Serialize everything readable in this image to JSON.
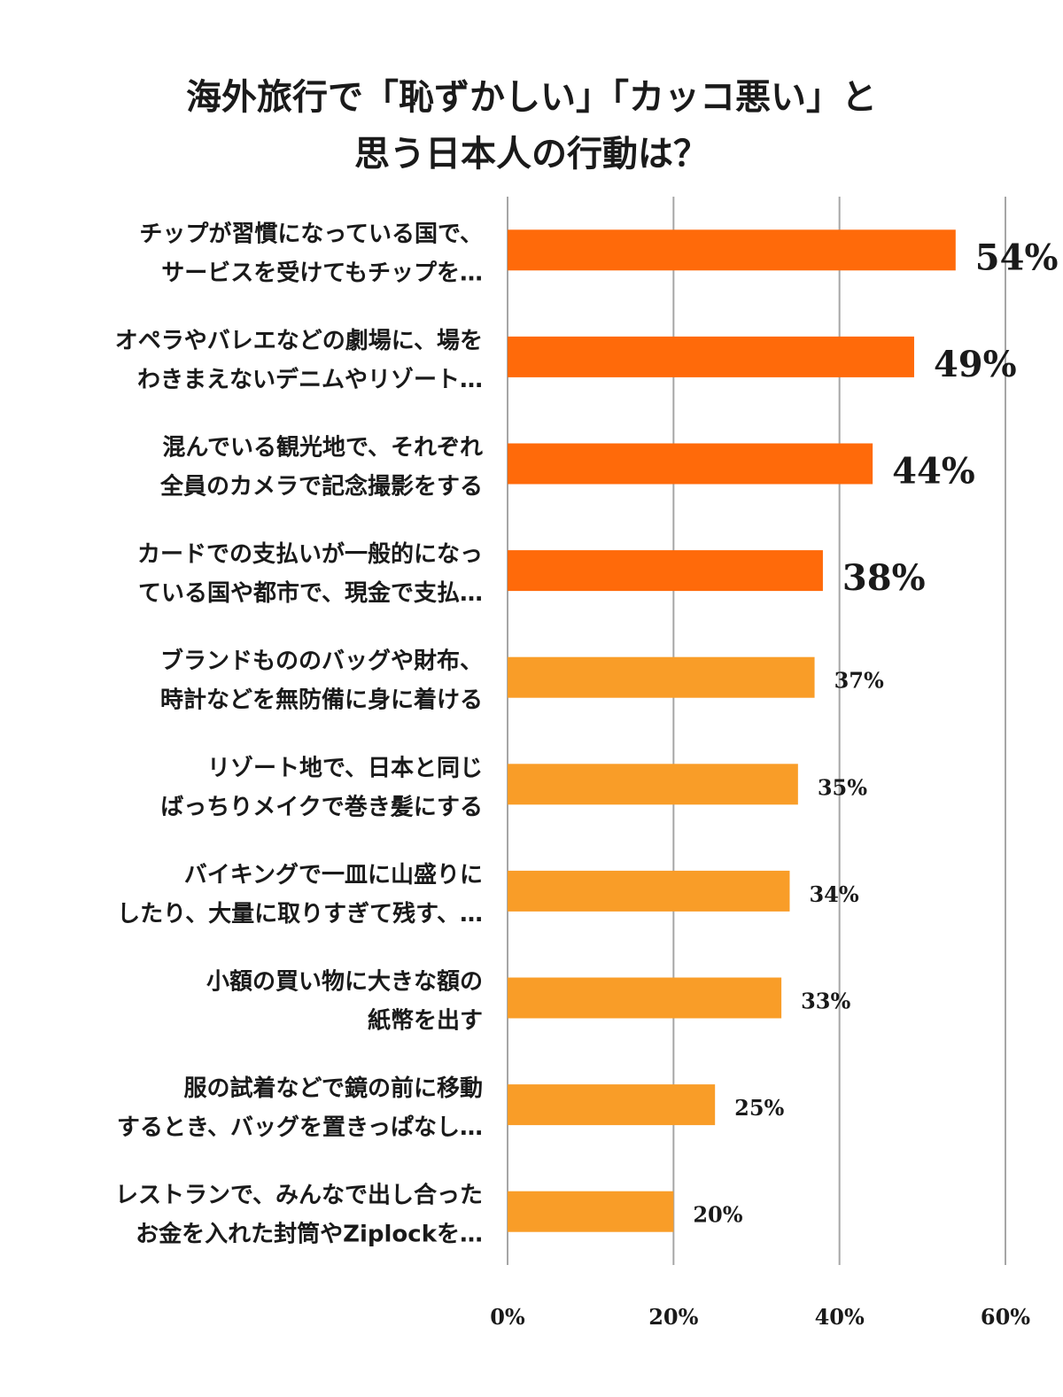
{
  "chart_data": {
    "type": "bar",
    "orientation": "horizontal",
    "title_lines": [
      "海外旅行で「恥ずかしい」「カッコ悪い」と",
      "思う日本人の行動は？"
    ],
    "categories": [
      [
        "チップが習慣になっている国で、",
        "サービスを受けてもチップを…"
      ],
      [
        "オペラやバレエなどの劇場に、場を",
        "わきまえないデニムやリゾート…"
      ],
      [
        "混んでいる観光地で、それぞれ",
        "全員のカメラで記念撮影をする"
      ],
      [
        "カードでの支払いが一般的になっ",
        "ている国や都市で、現金で支払…"
      ],
      [
        "ブランドもののバッグや財布、",
        "時計などを無防備に身に着ける"
      ],
      [
        "リゾート地で、日本と同じ",
        "ばっちりメイクで巻き髪にする"
      ],
      [
        "バイキングで一皿に山盛りに",
        "したり、大量に取りすぎて残す、…"
      ],
      [
        "小額の買い物に大きな額の",
        "紙幣を出す"
      ],
      [
        "服の試着などで鏡の前に移動",
        "するとき、バッグを置きっぱなし…"
      ],
      [
        "レストランで、みんなで出し合った",
        "お金を入れた封筒やZiplockを…"
      ]
    ],
    "values": [
      54,
      49,
      44,
      38,
      37,
      35,
      34,
      33,
      25,
      20
    ],
    "value_labels": [
      "54%",
      "49%",
      "44%",
      "38%",
      "37%",
      "35%",
      "34%",
      "33%",
      "25%",
      "20%"
    ],
    "xlim": [
      0,
      60
    ],
    "x_ticks": [
      0,
      20,
      40,
      60
    ],
    "x_tick_labels": [
      "0%",
      "20%",
      "40%",
      "60%"
    ],
    "grid": true,
    "legend": "none",
    "colors": {
      "highlight_bar": "#ff6a0a",
      "regular_bar": "#f99d28",
      "gridline": "#a6a6a6",
      "text": "#1a1a1a"
    },
    "highlight_count": 4
  }
}
